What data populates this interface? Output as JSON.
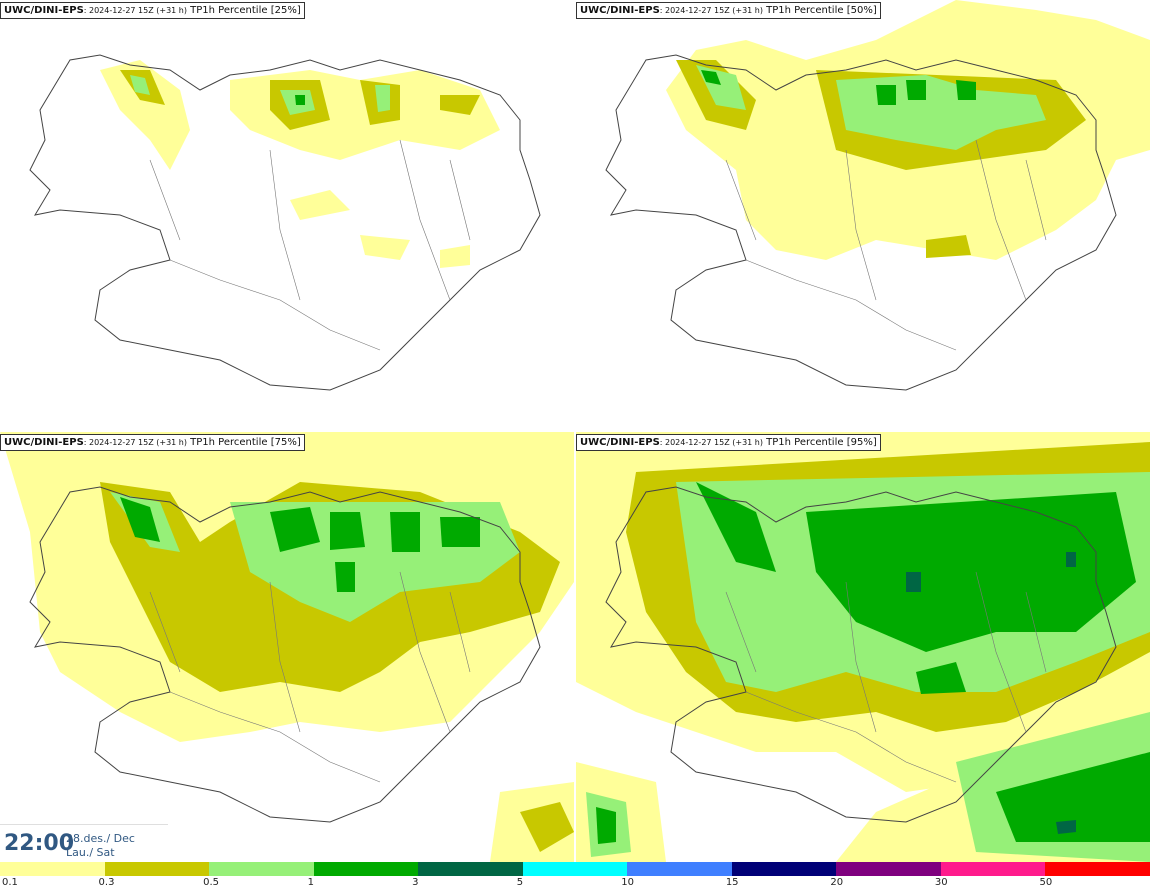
{
  "panels": [
    {
      "model": "UWC/DINI-EPS",
      "run": ": 2024-12-27 15Z (+31 h)",
      "field": " TP1h Percentile [25%]"
    },
    {
      "model": "UWC/DINI-EPS",
      "run": ": 2024-12-27 15Z (+31 h)",
      "field": " TP1h Percentile [50%]"
    },
    {
      "model": "UWC/DINI-EPS",
      "run": ": 2024-12-27 15Z (+31 h)",
      "field": " TP1h Percentile [75%]"
    },
    {
      "model": "UWC/DINI-EPS",
      "run": ": 2024-12-27 15Z (+31 h)",
      "field": " TP1h Percentile [95%]"
    }
  ],
  "valid_time": {
    "time": "22:00",
    "date": "28.des./ Dec",
    "day": "Lau./ Sat"
  },
  "colorbar": {
    "colors": [
      "#ffff99",
      "#c8c800",
      "#96f078",
      "#00aa00",
      "#006644",
      "#00ffff",
      "#3f7fff",
      "#000077",
      "#7f007f",
      "#ff1a8c",
      "#ff0000"
    ],
    "labels": [
      "0.1",
      "0.3",
      "0.5",
      "1",
      "3",
      "5",
      "10",
      "15",
      "20",
      "30",
      "50"
    ]
  },
  "colors": {
    "coast": "#444444"
  }
}
